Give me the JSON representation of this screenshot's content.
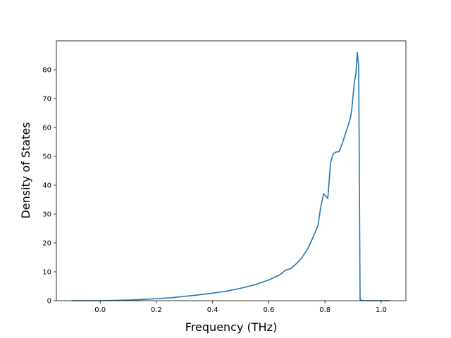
{
  "chart_data": {
    "type": "line",
    "title": "",
    "xlabel": "Frequency (THz)",
    "ylabel": "Density of States",
    "xlim": [
      -0.156,
      1.088
    ],
    "ylim": [
      0,
      90
    ],
    "x_ticks": [
      0.0,
      0.2,
      0.4,
      0.6,
      0.8,
      1.0
    ],
    "x_tick_labels": [
      "0.0",
      "0.2",
      "0.4",
      "0.6",
      "0.8",
      "1.0"
    ],
    "y_ticks": [
      0,
      10,
      20,
      30,
      40,
      50,
      60,
      70,
      80
    ],
    "y_tick_labels": [
      "0",
      "10",
      "20",
      "30",
      "40",
      "50",
      "60",
      "70",
      "80"
    ],
    "grid": false,
    "legend": "none",
    "series": [
      {
        "color": "#1f77b4",
        "x": [
          -0.1,
          0.0,
          0.05,
          0.1,
          0.15,
          0.2,
          0.25,
          0.3,
          0.35,
          0.4,
          0.45,
          0.5,
          0.55,
          0.6,
          0.64,
          0.66,
          0.68,
          0.7,
          0.72,
          0.74,
          0.76,
          0.775,
          0.785,
          0.795,
          0.805,
          0.81,
          0.82,
          0.83,
          0.84,
          0.85,
          0.86,
          0.87,
          0.88,
          0.89,
          0.895,
          0.9,
          0.905,
          0.91,
          0.915,
          0.92,
          0.925,
          0.935,
          0.95,
          1.0,
          1.03
        ],
        "y": [
          0,
          0,
          0.1,
          0.2,
          0.4,
          0.7,
          1.0,
          1.5,
          2.0,
          2.6,
          3.3,
          4.3,
          5.5,
          7.2,
          9.0,
          10.6,
          11.2,
          13.0,
          15.2,
          18.2,
          22.5,
          26.0,
          32.5,
          37.0,
          36.0,
          35.4,
          48.0,
          51.0,
          51.5,
          51.6,
          54.0,
          57.0,
          60.0,
          63.0,
          66.0,
          71.0,
          76.0,
          78.5,
          86.0,
          81.0,
          0.3,
          0,
          0,
          0,
          0
        ]
      }
    ]
  }
}
